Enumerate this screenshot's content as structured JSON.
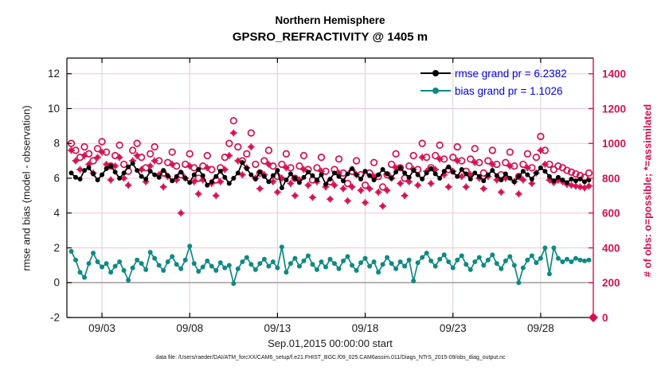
{
  "title": {
    "line1": "Northern Hemisphere",
    "line2": "GPSRO_REFRACTIVITY @ 1405 m"
  },
  "axes": {
    "y_left_label": "rmse and bias (model - observation)",
    "y_right_label": "# of obs: o=possible; *=assimilated",
    "x_label": "Sep.01,2015 00:00:00 start",
    "y_left_ticks": [
      -2,
      0,
      2,
      4,
      6,
      8,
      10,
      12
    ],
    "y_right_ticks": [
      0,
      200,
      400,
      600,
      800,
      1000,
      1200,
      1400
    ],
    "x_ticks": [
      {
        "t": 3,
        "label": "09/03"
      },
      {
        "t": 8,
        "label": "09/08"
      },
      {
        "t": 13,
        "label": "09/13"
      },
      {
        "t": 18,
        "label": "09/18"
      },
      {
        "t": 23,
        "label": "09/23"
      },
      {
        "t": 28,
        "label": "09/28"
      }
    ]
  },
  "legend": [
    {
      "label": "rmse grand pr = 6.2382",
      "color": "#000000"
    },
    {
      "label": "bias grand pr = 1.1026",
      "color": "#0f8a82"
    }
  ],
  "caption": "data file: /Users/raeder/DAI/ATM_forcXX/CAM6_setup/f.e21.FHIST_BGC.f09_025.CAM6assim.011/Diags_NTrS_2015-09/obs_diag_output.nc",
  "colors": {
    "obs_count": "#d61150",
    "rmse": "#000000",
    "bias": "#0f8a82",
    "legend_text": "#0000ee",
    "grid_h": "#f5c6d3",
    "grid_v": "#dcced2",
    "zero_line": "#a09a9c",
    "axis_dark": "#1a1a1a"
  },
  "chart_data": {
    "type": "line",
    "title": "Northern Hemisphere / GPSRO_REFRACTIVITY @ 1405 m",
    "x_unit": "day of September 2015 (6-hourly bins), axis start Sep.01,2015 00:00:00",
    "x_start": 1.25,
    "x_step": 0.25,
    "n_points": 119,
    "xlim": [
      1,
      31
    ],
    "ylim_left": [
      -2,
      12.9
    ],
    "ylim_right": [
      0,
      1490
    ],
    "grid": true,
    "legend_position": "top-right-inside",
    "series": [
      {
        "name": "rmse",
        "legend": "rmse grand pr = 6.2382",
        "grand_value": 6.2382,
        "axis": "left",
        "style": "line-dot",
        "color": "#000000",
        "values": [
          6.3,
          6.05,
          5.95,
          6.45,
          6.6,
          6.25,
          5.9,
          6.2,
          6.55,
          6.7,
          6.35,
          6.0,
          6.3,
          6.65,
          6.85,
          6.45,
          6.1,
          5.95,
          6.4,
          6.2,
          6.05,
          6.45,
          6.15,
          5.85,
          6.1,
          6.35,
          6.0,
          5.75,
          6.2,
          6.5,
          6.15,
          5.6,
          5.8,
          6.1,
          6.4,
          6.05,
          5.7,
          6.0,
          6.3,
          6.9,
          6.55,
          6.2,
          5.95,
          6.35,
          6.1,
          5.8,
          6.15,
          6.45,
          5.45,
          5.9,
          6.25,
          6.0,
          5.75,
          6.05,
          6.35,
          6.15,
          5.9,
          6.2,
          5.65,
          5.95,
          6.3,
          6.1,
          5.85,
          6.25,
          6.55,
          6.2,
          5.95,
          6.4,
          6.15,
          5.9,
          6.2,
          6.5,
          6.25,
          6.0,
          6.35,
          6.6,
          6.3,
          6.05,
          6.45,
          6.2,
          5.95,
          6.3,
          6.55,
          6.25,
          6.0,
          6.4,
          6.65,
          6.35,
          6.1,
          6.5,
          6.25,
          5.95,
          6.3,
          6.1,
          5.85,
          6.2,
          6.45,
          6.15,
          5.9,
          6.25,
          6.0,
          5.8,
          6.1,
          6.4,
          6.2,
          5.95,
          6.3,
          6.6,
          6.4,
          6.1,
          5.85,
          6.05,
          5.9,
          5.75,
          5.95,
          5.85,
          5.95,
          5.8,
          5.9
        ]
      },
      {
        "name": "bias",
        "legend": "bias grand pr = 1.1026",
        "grand_value": 1.1026,
        "axis": "left",
        "style": "line-dot",
        "color": "#0f8a82",
        "values": [
          1.8,
          1.3,
          0.6,
          0.3,
          1.1,
          1.7,
          1.2,
          0.9,
          1.1,
          0.6,
          0.95,
          1.2,
          0.7,
          0.15,
          0.85,
          1.3,
          1.1,
          0.75,
          1.75,
          1.4,
          1.0,
          0.7,
          1.2,
          1.5,
          1.05,
          0.8,
          1.3,
          2.1,
          1.1,
          0.65,
          0.9,
          1.25,
          0.95,
          0.7,
          1.15,
          0.85,
          1.0,
          -0.05,
          0.8,
          1.2,
          1.45,
          1.05,
          0.75,
          1.1,
          1.35,
          0.95,
          1.2,
          0.85,
          2.05,
          0.6,
          1.1,
          1.4,
          0.95,
          1.25,
          1.55,
          1.05,
          0.75,
          1.2,
          0.9,
          1.35,
          1.1,
          0.8,
          1.25,
          1.5,
          1.0,
          0.7,
          1.15,
          1.4,
          0.95,
          1.2,
          0.6,
          1.05,
          1.45,
          1.1,
          0.8,
          1.2,
          0.95,
          1.3,
          0.1,
          1.15,
          1.45,
          1.7,
          1.25,
          0.95,
          1.35,
          1.6,
          1.2,
          0.85,
          1.3,
          1.55,
          1.05,
          0.75,
          1.2,
          1.45,
          1.0,
          1.3,
          1.6,
          1.1,
          0.8,
          1.25,
          1.5,
          1.0,
          0.0,
          0.85,
          1.3,
          1.55,
          1.15,
          1.4,
          2.0,
          0.5,
          2.0,
          1.4,
          1.2,
          1.35,
          1.2,
          1.4,
          1.3,
          1.25,
          1.3
        ]
      },
      {
        "name": "possible_obs",
        "legend": "o=possible",
        "axis": "right",
        "style": "open-circle",
        "color": "#d61150",
        "values": [
          1000,
          960,
          920,
          980,
          940,
          900,
          970,
          1010,
          950,
          870,
          930,
          990,
          880,
          840,
          960,
          1000,
          920,
          860,
          940,
          980,
          900,
          830,
          890,
          950,
          870,
          820,
          880,
          940,
          860,
          800,
          870,
          930,
          850,
          790,
          860,
          920,
          1000,
          1130,
          980,
          900,
          940,
          1060,
          880,
          830,
          900,
          960,
          870,
          810,
          880,
          940,
          860,
          800,
          870,
          930,
          850,
          790,
          860,
          920,
          840,
          780,
          850,
          910,
          830,
          770,
          840,
          900,
          820,
          760,
          830,
          890,
          810,
          750,
          820,
          880,
          940,
          860,
          800,
          870,
          930,
          850,
          1000,
          920,
          860,
          930,
          990,
          910,
          850,
          920,
          980,
          900,
          840,
          910,
          970,
          890,
          830,
          900,
          960,
          880,
          820,
          890,
          950,
          870,
          810,
          880,
          940,
          860,
          920,
          1040,
          960,
          880,
          850,
          870,
          860,
          845,
          835,
          825,
          815,
          805,
          830
        ]
      },
      {
        "name": "assimilated_obs",
        "legend": "*=assimilated",
        "axis": "right",
        "style": "asterisk",
        "color": "#d61150",
        "values": [
          960,
          900,
          850,
          930,
          880,
          830,
          920,
          950,
          880,
          790,
          870,
          920,
          800,
          760,
          900,
          930,
          850,
          780,
          870,
          900,
          820,
          750,
          810,
          880,
          790,
          600,
          800,
          870,
          780,
          710,
          790,
          860,
          770,
          700,
          780,
          850,
          930,
          1060,
          900,
          820,
          860,
          980,
          800,
          740,
          820,
          880,
          780,
          720,
          800,
          860,
          770,
          700,
          790,
          850,
          760,
          690,
          780,
          840,
          750,
          680,
          760,
          830,
          740,
          670,
          750,
          820,
          730,
          660,
          740,
          810,
          720,
          640,
          730,
          800,
          860,
          770,
          700,
          780,
          850,
          760,
          920,
          840,
          770,
          850,
          910,
          820,
          750,
          840,
          900,
          810,
          750,
          820,
          890,
          800,
          740,
          810,
          880,
          790,
          720,
          800,
          870,
          780,
          710,
          790,
          860,
          770,
          830,
          960,
          880,
          790,
          775,
          790,
          780,
          765,
          760,
          755,
          750,
          745,
          755
        ]
      }
    ]
  }
}
